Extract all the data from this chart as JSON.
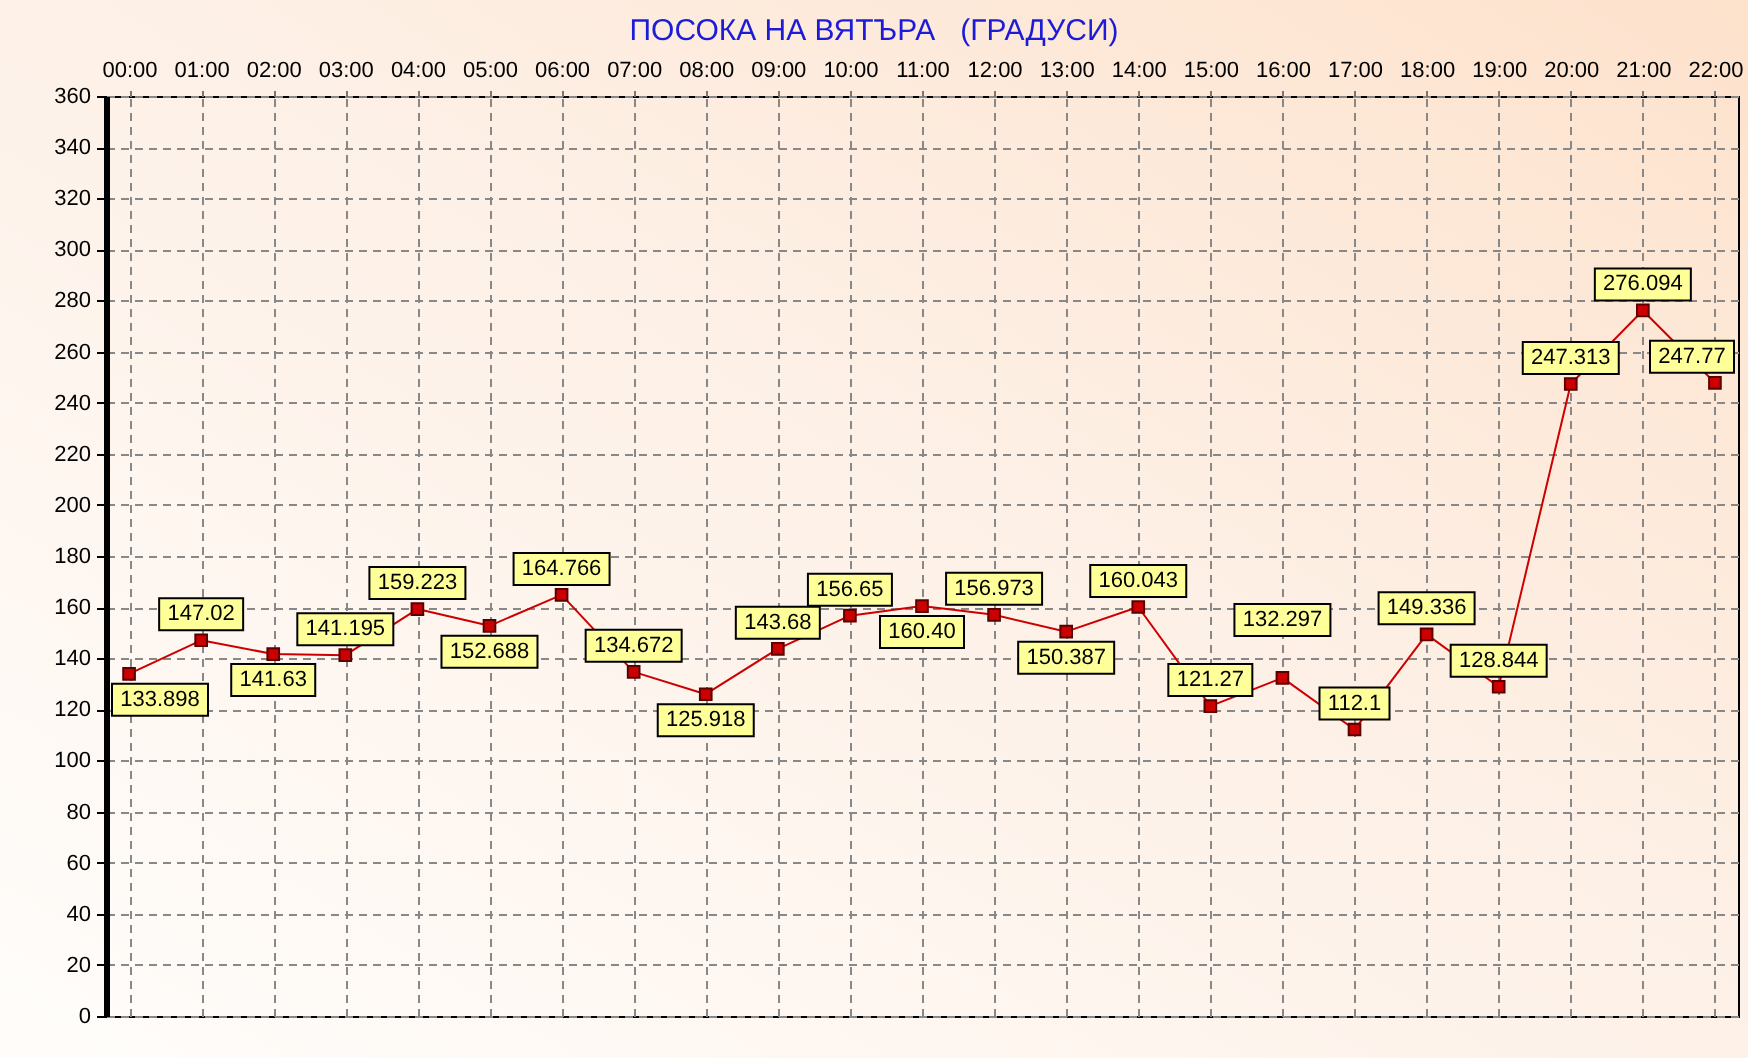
{
  "chart_data": {
    "type": "line",
    "title": "ПОСОКА НА ВЯТЪРА   (ГРАДУСИ)",
    "categories": [
      "00:00",
      "01:00",
      "02:00",
      "03:00",
      "04:00",
      "05:00",
      "06:00",
      "07:00",
      "08:00",
      "09:00",
      "10:00",
      "11:00",
      "12:00",
      "13:00",
      "14:00",
      "15:00",
      "16:00",
      "17:00",
      "18:00",
      "19:00",
      "20:00",
      "21:00",
      "22:00"
    ],
    "values": [
      133.898,
      147.02,
      141.63,
      141.195,
      159.223,
      152.688,
      164.766,
      134.672,
      125.918,
      143.68,
      156.65,
      160.4,
      156.973,
      150.387,
      160.043,
      121.27,
      132.297,
      112.1,
      149.336,
      128.844,
      247.313,
      276.094,
      247.77
    ],
    "value_labels": [
      "133.898",
      "147.02",
      "141.63",
      "141.195",
      "159.223",
      "152.688",
      "164.766",
      "134.672",
      "125.918",
      "143.68",
      "156.65",
      "160.40",
      "156.973",
      "150.387",
      "160.043",
      "121.27",
      "132.297",
      "112.1",
      "149.336",
      "128.844",
      "247.313",
      "276.094",
      "247.77"
    ],
    "color": "#cc0000",
    "ylim": [
      0,
      360
    ],
    "yticks": [
      0,
      20,
      40,
      60,
      80,
      100,
      120,
      140,
      160,
      180,
      200,
      220,
      240,
      260,
      280,
      300,
      320,
      340,
      360
    ],
    "grid": true,
    "marker": "square",
    "line_style": "solid"
  }
}
